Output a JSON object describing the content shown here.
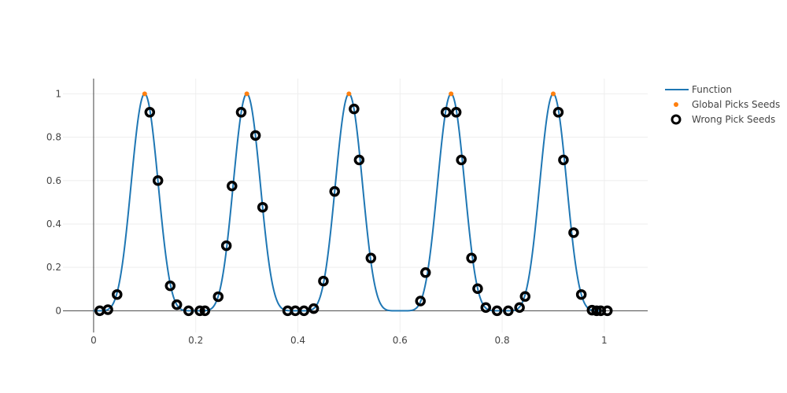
{
  "chart_data": {
    "type": "scatter",
    "title": "",
    "xlabel": "",
    "ylabel": "",
    "xlim": [
      -0.06,
      1.085
    ],
    "ylim": [
      -0.1,
      1.07
    ],
    "xticks": [
      0,
      0.2,
      0.4,
      0.6,
      0.8,
      1
    ],
    "xtick_labels": [
      "0",
      "0.2",
      "0.4",
      "0.6",
      "0.8",
      "1"
    ],
    "yticks": [
      0,
      0.2,
      0.4,
      0.6,
      0.8,
      1
    ],
    "ytick_labels": [
      "0",
      "0.2",
      "0.4",
      "0.6",
      "0.8",
      "1"
    ],
    "grid": true,
    "legend_position": "top-right",
    "series": [
      {
        "name": "Function",
        "kind": "line",
        "color": "#1f77b4",
        "function": "sin(5*pi*x)^6",
        "x_range": [
          0,
          1
        ]
      },
      {
        "name": "Global Picks Seeds",
        "kind": "markers",
        "color": "#ff7f0e",
        "x": [
          0.1,
          0.3,
          0.5,
          0.7,
          0.9
        ],
        "y": [
          1,
          1,
          1,
          1,
          1
        ]
      },
      {
        "name": "Wrong Pick Seeds",
        "kind": "markers-open",
        "color": "#000000",
        "x": [
          0.012,
          0.028,
          0.046,
          0.11,
          0.126,
          0.15,
          0.163,
          0.186,
          0.208,
          0.218,
          0.244,
          0.26,
          0.271,
          0.289,
          0.317,
          0.331,
          0.38,
          0.395,
          0.412,
          0.431,
          0.45,
          0.472,
          0.51,
          0.52,
          0.543,
          0.64,
          0.65,
          0.69,
          0.71,
          0.72,
          0.74,
          0.752,
          0.768,
          0.79,
          0.812,
          0.834,
          0.845,
          0.91,
          0.92,
          0.94,
          0.955,
          0.976,
          0.985,
          0.993,
          1.006
        ],
        "y": [
          0.0,
          0.005,
          0.075,
          0.915,
          0.6,
          0.115,
          0.028,
          0.0,
          0.0,
          0.0,
          0.065,
          0.3,
          0.575,
          0.915,
          0.808,
          0.477,
          0.0,
          0.0,
          0.0,
          0.01,
          0.137,
          0.55,
          0.93,
          0.695,
          0.243,
          0.045,
          0.176,
          0.915,
          0.915,
          0.695,
          0.243,
          0.102,
          0.015,
          0.0,
          0.0,
          0.015,
          0.066,
          0.915,
          0.695,
          0.36,
          0.075,
          0.003,
          0.0,
          0.0,
          0.0
        ]
      }
    ]
  }
}
